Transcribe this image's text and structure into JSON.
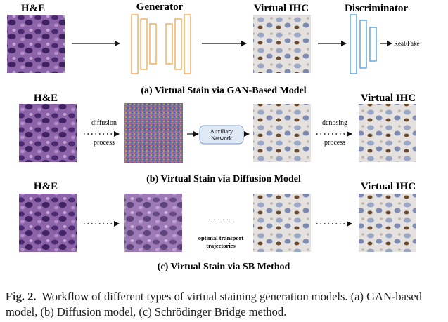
{
  "row_a": {
    "he_label": "H&E",
    "generator_label": "Generator",
    "virtual_label": "Virtual IHC",
    "discriminator_label": "Discriminator",
    "output_label": "Real/Fake",
    "caption": "(a) Virtual Stain via GAN-Based Model"
  },
  "row_b": {
    "he_label": "H&E",
    "step1_line1": "diffusion",
    "step1_line2": "process",
    "aux_line1": "Auxiliary",
    "aux_line2": "Network",
    "step2_line1": "denosing",
    "step2_line2": "process",
    "virtual_label": "Virtual IHC",
    "caption": "(b) Virtual Stain via Diffusion Model"
  },
  "row_c": {
    "he_label": "H&E",
    "dots": "· · ·",
    "middle_dots": "· · · · · ·",
    "transport_line1": "optimal transport",
    "transport_line2": "trajectories",
    "virtual_label": "Virtual IHC",
    "caption": "(c) Virtual Stain via SB Method"
  },
  "figure_caption": {
    "label": "Fig. 2.",
    "text": "Workflow of different types of virtual staining generation models. (a) GAN-based model, (b) Diffusion model, (c) Schrödinger Bridge method."
  },
  "colors": {
    "he_tissue": "#6a3f8e",
    "ihc_tissue": "#d9d6d3",
    "generator_stroke": "#f0a64a",
    "discriminator_stroke": "#4c9ad6",
    "aux_fill": "#dfe8f5",
    "aux_stroke": "#7b98c6"
  }
}
